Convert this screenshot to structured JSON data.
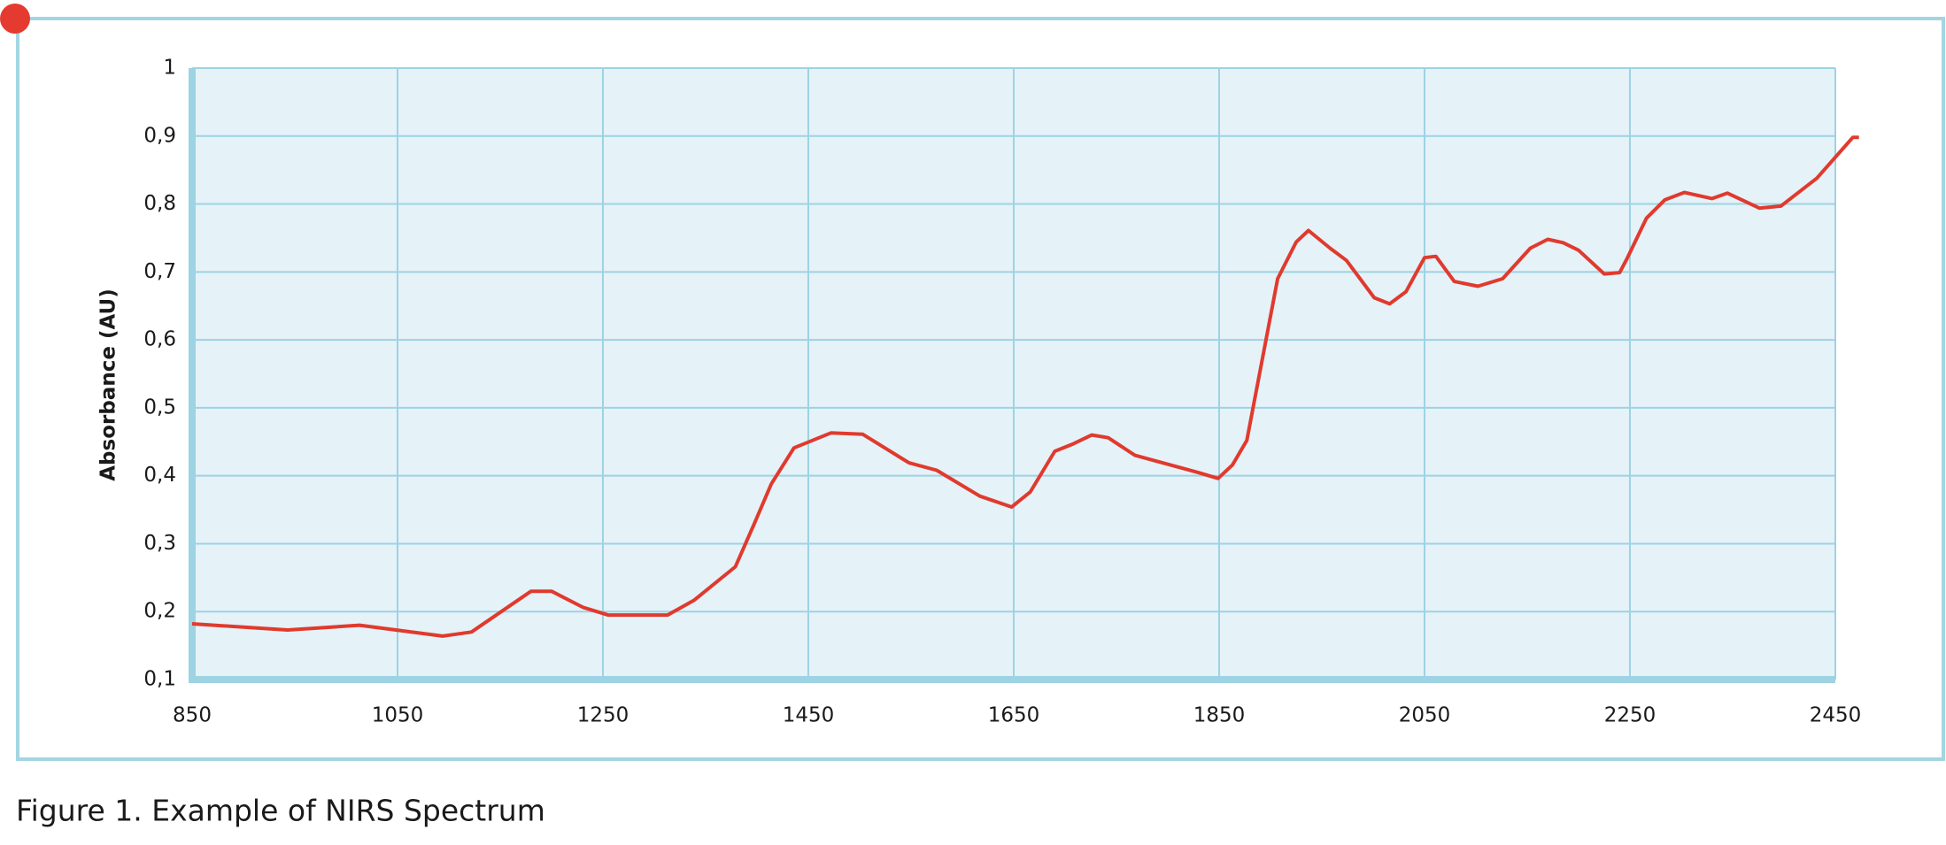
{
  "chart_data": {
    "type": "line",
    "caption": "Figure 1. Example of NIRS Spectrum",
    "ylabel": "Absorbance (AU)",
    "x": [
      850,
      943,
      1013,
      1094,
      1122,
      1180,
      1200,
      1231,
      1255,
      1313,
      1339,
      1379,
      1397,
      1414,
      1436,
      1472,
      1503,
      1548,
      1575,
      1617,
      1648,
      1666,
      1690,
      1708,
      1726,
      1742,
      1768,
      1829,
      1849,
      1863,
      1877,
      1907,
      1925,
      1937,
      1958,
      1974,
      2001,
      2016,
      2032,
      2050,
      2061,
      2079,
      2102,
      2126,
      2153,
      2170,
      2185,
      2200,
      2225,
      2240,
      2247,
      2266,
      2284,
      2303,
      2330,
      2345,
      2376,
      2397,
      2432,
      2467,
      2473
    ],
    "series": [
      {
        "color": "#e03a2e",
        "values": [
          0.182,
          0.173,
          0.18,
          0.164,
          0.17,
          0.23,
          0.23,
          0.206,
          0.195,
          0.195,
          0.217,
          0.266,
          0.328,
          0.388,
          0.441,
          0.463,
          0.461,
          0.419,
          0.408,
          0.37,
          0.354,
          0.376,
          0.436,
          0.447,
          0.46,
          0.456,
          0.43,
          0.405,
          0.396,
          0.416,
          0.452,
          0.69,
          0.744,
          0.761,
          0.735,
          0.717,
          0.662,
          0.653,
          0.671,
          0.721,
          0.723,
          0.686,
          0.679,
          0.69,
          0.735,
          0.748,
          0.743,
          0.732,
          0.697,
          0.699,
          0.719,
          0.779,
          0.806,
          0.817,
          0.808,
          0.816,
          0.794,
          0.797,
          0.838,
          0.898,
          0.898
        ]
      }
    ],
    "xlim": [
      850,
      2450
    ],
    "xticks": [
      850,
      1050,
      1250,
      1450,
      1650,
      1850,
      2050,
      2250,
      2450
    ],
    "ylim": [
      0.1,
      1
    ],
    "yticks": [
      {
        "value": 0.1,
        "label": "0,1"
      },
      {
        "value": 0.2,
        "label": "0,2"
      },
      {
        "value": 0.3,
        "label": "0,3"
      },
      {
        "value": 0.4,
        "label": "0,4"
      },
      {
        "value": 0.5,
        "label": "0,5"
      },
      {
        "value": 0.6,
        "label": "0,6"
      },
      {
        "value": 0.7,
        "label": "0,7"
      },
      {
        "value": 0.8,
        "label": "0,8"
      },
      {
        "value": 0.9,
        "label": "0,9"
      },
      1
    ],
    "grid": true
  }
}
